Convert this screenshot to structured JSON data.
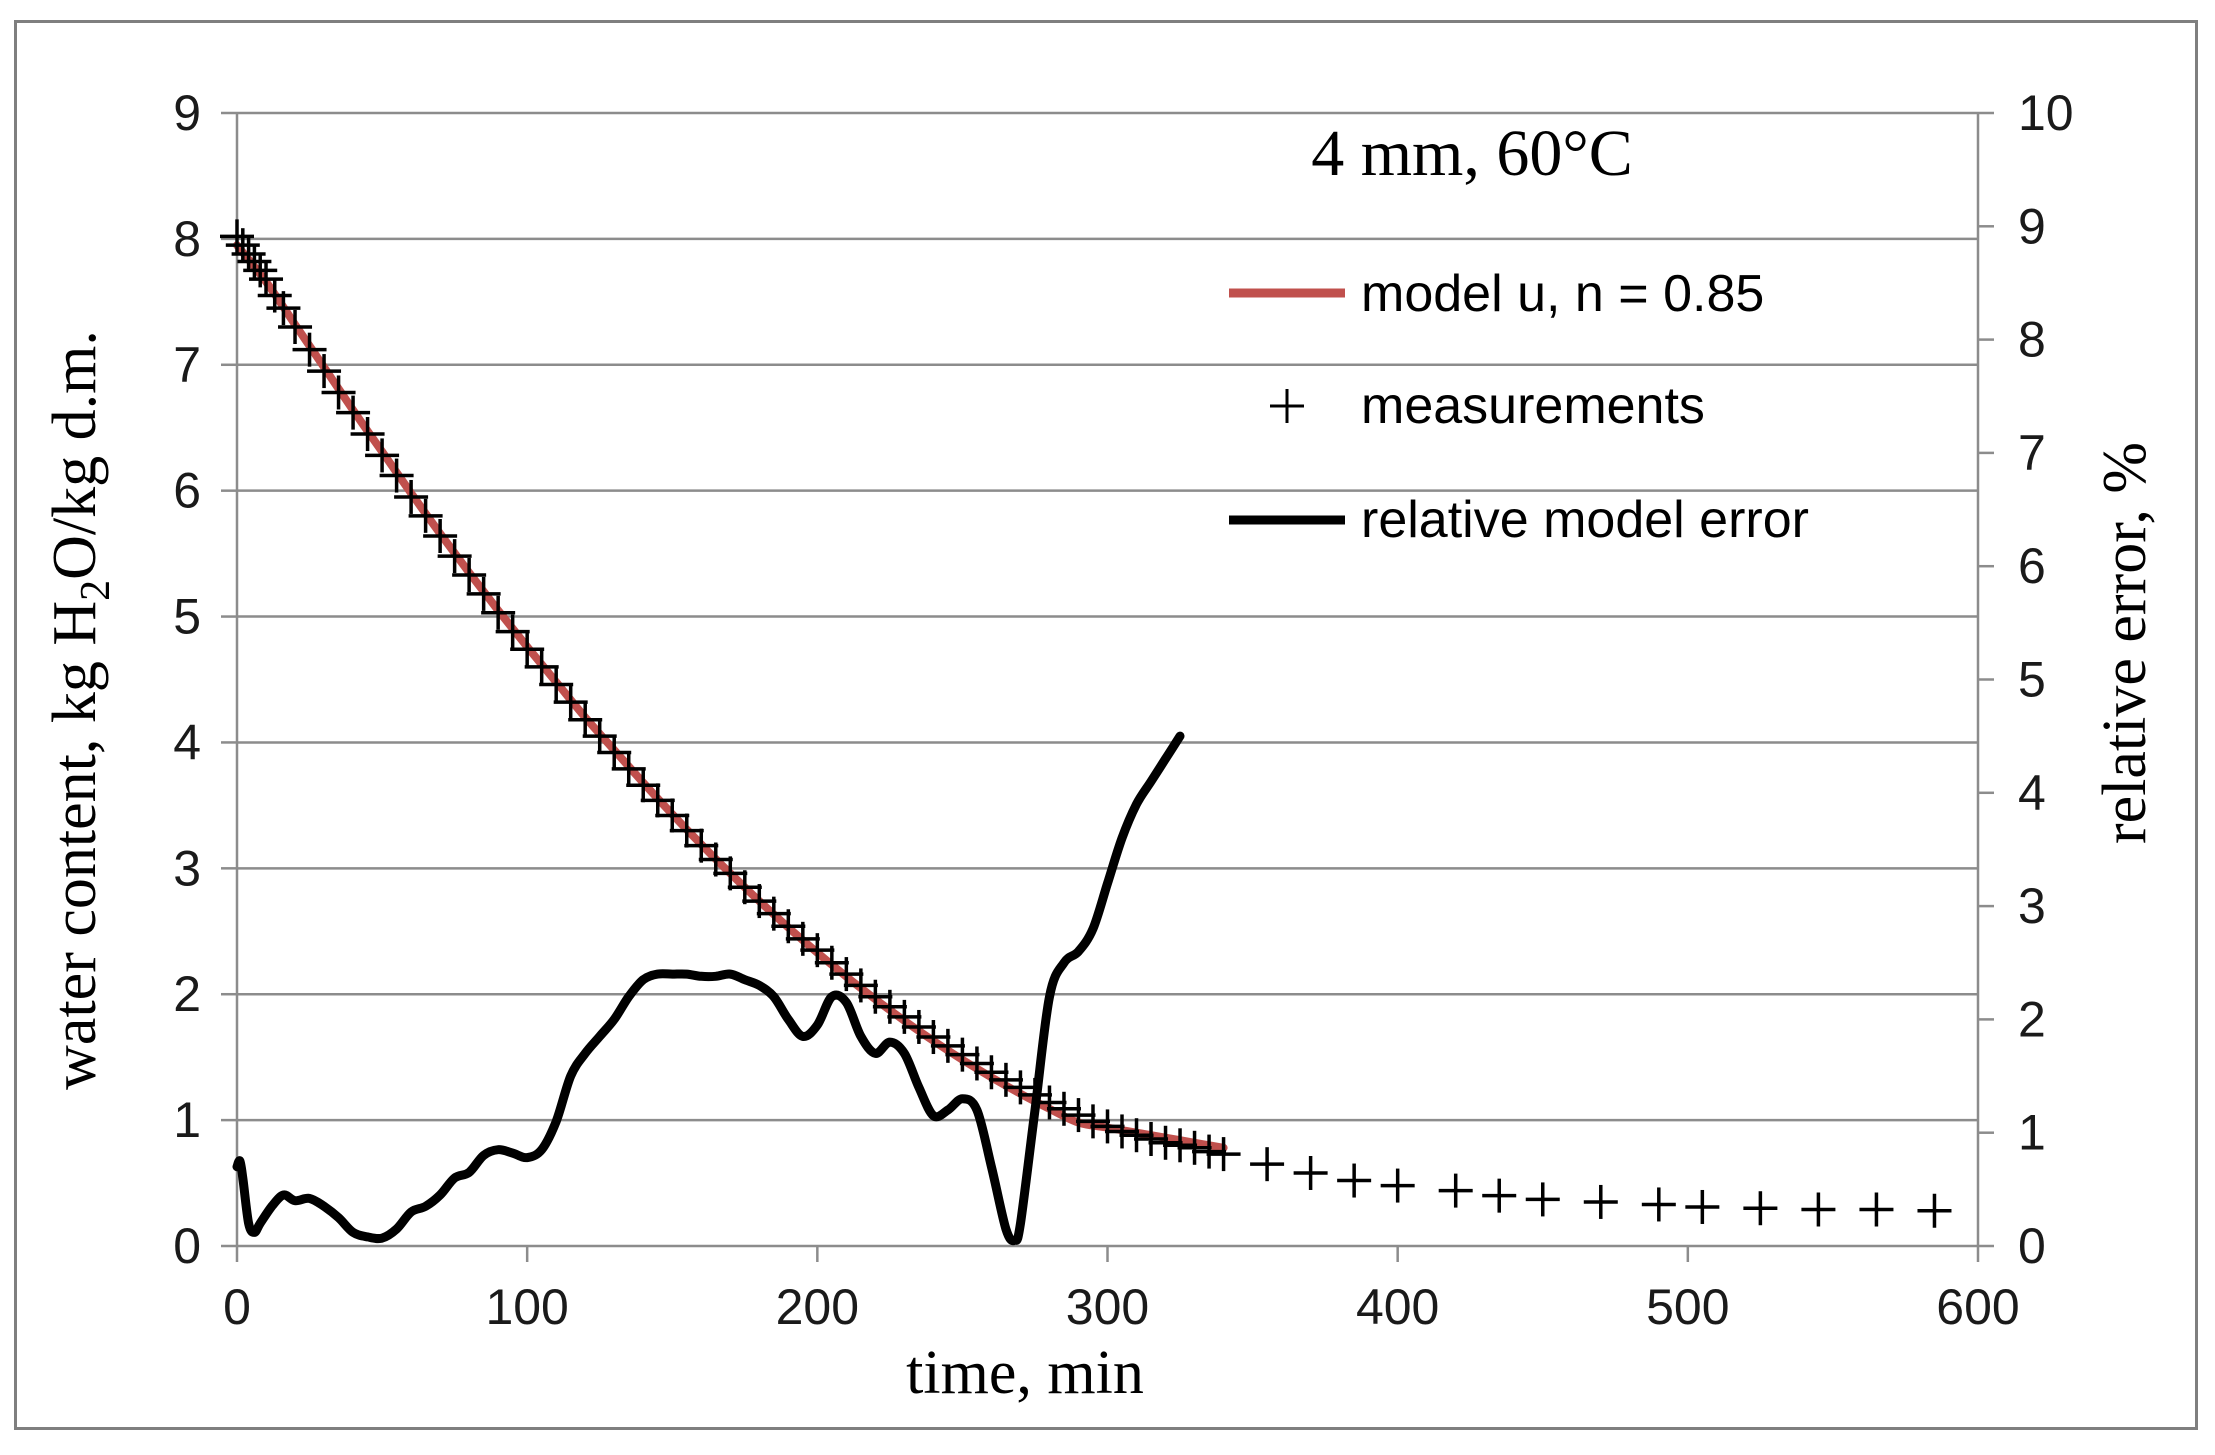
{
  "chart_data": {
    "type": "line",
    "title": "",
    "annotation": "4 mm, 60°C",
    "xlabel": "time, min",
    "ylabel_left": {
      "prefix": "water content, kg H",
      "sub": "2",
      "suffix": "O/kg d.m."
    },
    "ylabel_right": "relative error, %",
    "xlim": [
      0,
      600
    ],
    "ylim_left": [
      0,
      9
    ],
    "ylim_right": [
      0,
      10
    ],
    "x_ticks": [
      "0",
      "100",
      "200",
      "300",
      "400",
      "500",
      "600"
    ],
    "y_left_ticks": [
      "0",
      "1",
      "2",
      "3",
      "4",
      "5",
      "6",
      "7",
      "8",
      "9"
    ],
    "y_right_ticks": [
      "0",
      "1",
      "2",
      "3",
      "4",
      "5",
      "6",
      "7",
      "8",
      "9",
      "10"
    ],
    "grid": "horizontal",
    "legend_position": "top-right",
    "series": [
      {
        "name": "model u, n = 0.85",
        "kind": "line",
        "axis": "left",
        "color": "#c0504d",
        "x": [
          0,
          10,
          20,
          30,
          40,
          50,
          60,
          70,
          80,
          90,
          100,
          110,
          120,
          130,
          140,
          150,
          160,
          170,
          180,
          190,
          200,
          210,
          220,
          230,
          240,
          250,
          260,
          270,
          280,
          290,
          300,
          310,
          320,
          330,
          340
        ],
        "y": [
          7.95,
          7.66,
          7.32,
          6.98,
          6.64,
          6.31,
          5.98,
          5.66,
          5.35,
          5.05,
          4.76,
          4.48,
          4.2,
          3.94,
          3.68,
          3.43,
          3.19,
          2.96,
          2.74,
          2.53,
          2.33,
          2.14,
          1.96,
          1.79,
          1.63,
          1.48,
          1.34,
          1.21,
          1.09,
          0.98,
          0.94,
          0.9,
          0.86,
          0.82,
          0.78
        ]
      },
      {
        "name": "measurements",
        "kind": "markers",
        "marker": "+",
        "axis": "left",
        "color": "#000000",
        "x": [
          0,
          2,
          4,
          6,
          8,
          10,
          13,
          16,
          20,
          25,
          30,
          35,
          40,
          45,
          50,
          55,
          60,
          65,
          70,
          75,
          80,
          85,
          90,
          95,
          100,
          105,
          110,
          115,
          120,
          125,
          130,
          135,
          140,
          145,
          150,
          155,
          160,
          165,
          170,
          175,
          180,
          185,
          190,
          195,
          200,
          205,
          210,
          215,
          220,
          225,
          230,
          235,
          240,
          245,
          250,
          255,
          260,
          265,
          270,
          275,
          280,
          285,
          290,
          295,
          300,
          305,
          310,
          315,
          320,
          325,
          330,
          335,
          340,
          355,
          370,
          385,
          400,
          420,
          435,
          450,
          470,
          490,
          505,
          525,
          545,
          565,
          585
        ],
        "y": [
          8.02,
          7.95,
          7.88,
          7.82,
          7.75,
          7.68,
          7.55,
          7.45,
          7.3,
          7.12,
          6.95,
          6.78,
          6.62,
          6.45,
          6.28,
          6.12,
          5.95,
          5.8,
          5.64,
          5.48,
          5.33,
          5.18,
          5.03,
          4.88,
          4.74,
          4.6,
          4.46,
          4.32,
          4.18,
          4.05,
          3.92,
          3.79,
          3.66,
          3.54,
          3.42,
          3.3,
          3.18,
          3.07,
          2.96,
          2.85,
          2.74,
          2.64,
          2.54,
          2.44,
          2.35,
          2.25,
          2.16,
          2.07,
          1.98,
          1.9,
          1.82,
          1.74,
          1.66,
          1.59,
          1.52,
          1.45,
          1.38,
          1.32,
          1.26,
          1.2,
          1.14,
          1.09,
          1.04,
          0.99,
          0.95,
          0.91,
          0.88,
          0.85,
          0.82,
          0.8,
          0.78,
          0.75,
          0.73,
          0.65,
          0.58,
          0.52,
          0.48,
          0.44,
          0.4,
          0.37,
          0.35,
          0.33,
          0.31,
          0.3,
          0.29,
          0.29,
          0.28
        ]
      },
      {
        "name": "relative model error",
        "kind": "line",
        "axis": "right",
        "color": "#000000",
        "x": [
          0,
          1,
          2,
          4,
          6,
          8,
          12,
          16,
          20,
          25,
          30,
          35,
          40,
          45,
          50,
          55,
          60,
          65,
          70,
          75,
          80,
          85,
          90,
          95,
          100,
          105,
          110,
          115,
          120,
          125,
          130,
          135,
          140,
          145,
          150,
          155,
          160,
          165,
          170,
          175,
          180,
          185,
          190,
          195,
          200,
          205,
          210,
          215,
          220,
          225,
          230,
          235,
          240,
          245,
          250,
          255,
          260,
          265,
          268,
          270,
          275,
          280,
          285,
          290,
          295,
          300,
          305,
          310,
          315,
          320,
          325
        ],
        "y": [
          0.7,
          0.75,
          0.6,
          0.2,
          0.12,
          0.2,
          0.35,
          0.45,
          0.4,
          0.42,
          0.35,
          0.25,
          0.12,
          0.08,
          0.07,
          0.15,
          0.3,
          0.35,
          0.45,
          0.6,
          0.65,
          0.8,
          0.85,
          0.82,
          0.78,
          0.85,
          1.1,
          1.5,
          1.7,
          1.85,
          2.0,
          2.2,
          2.35,
          2.4,
          2.4,
          2.4,
          2.38,
          2.38,
          2.4,
          2.35,
          2.3,
          2.2,
          2.0,
          1.85,
          1.95,
          2.2,
          2.15,
          1.85,
          1.7,
          1.8,
          1.7,
          1.4,
          1.15,
          1.2,
          1.3,
          1.2,
          0.7,
          0.15,
          0.05,
          0.2,
          1.2,
          2.2,
          2.5,
          2.6,
          2.8,
          3.2,
          3.6,
          3.9,
          4.1,
          4.3,
          4.5
        ]
      }
    ]
  }
}
